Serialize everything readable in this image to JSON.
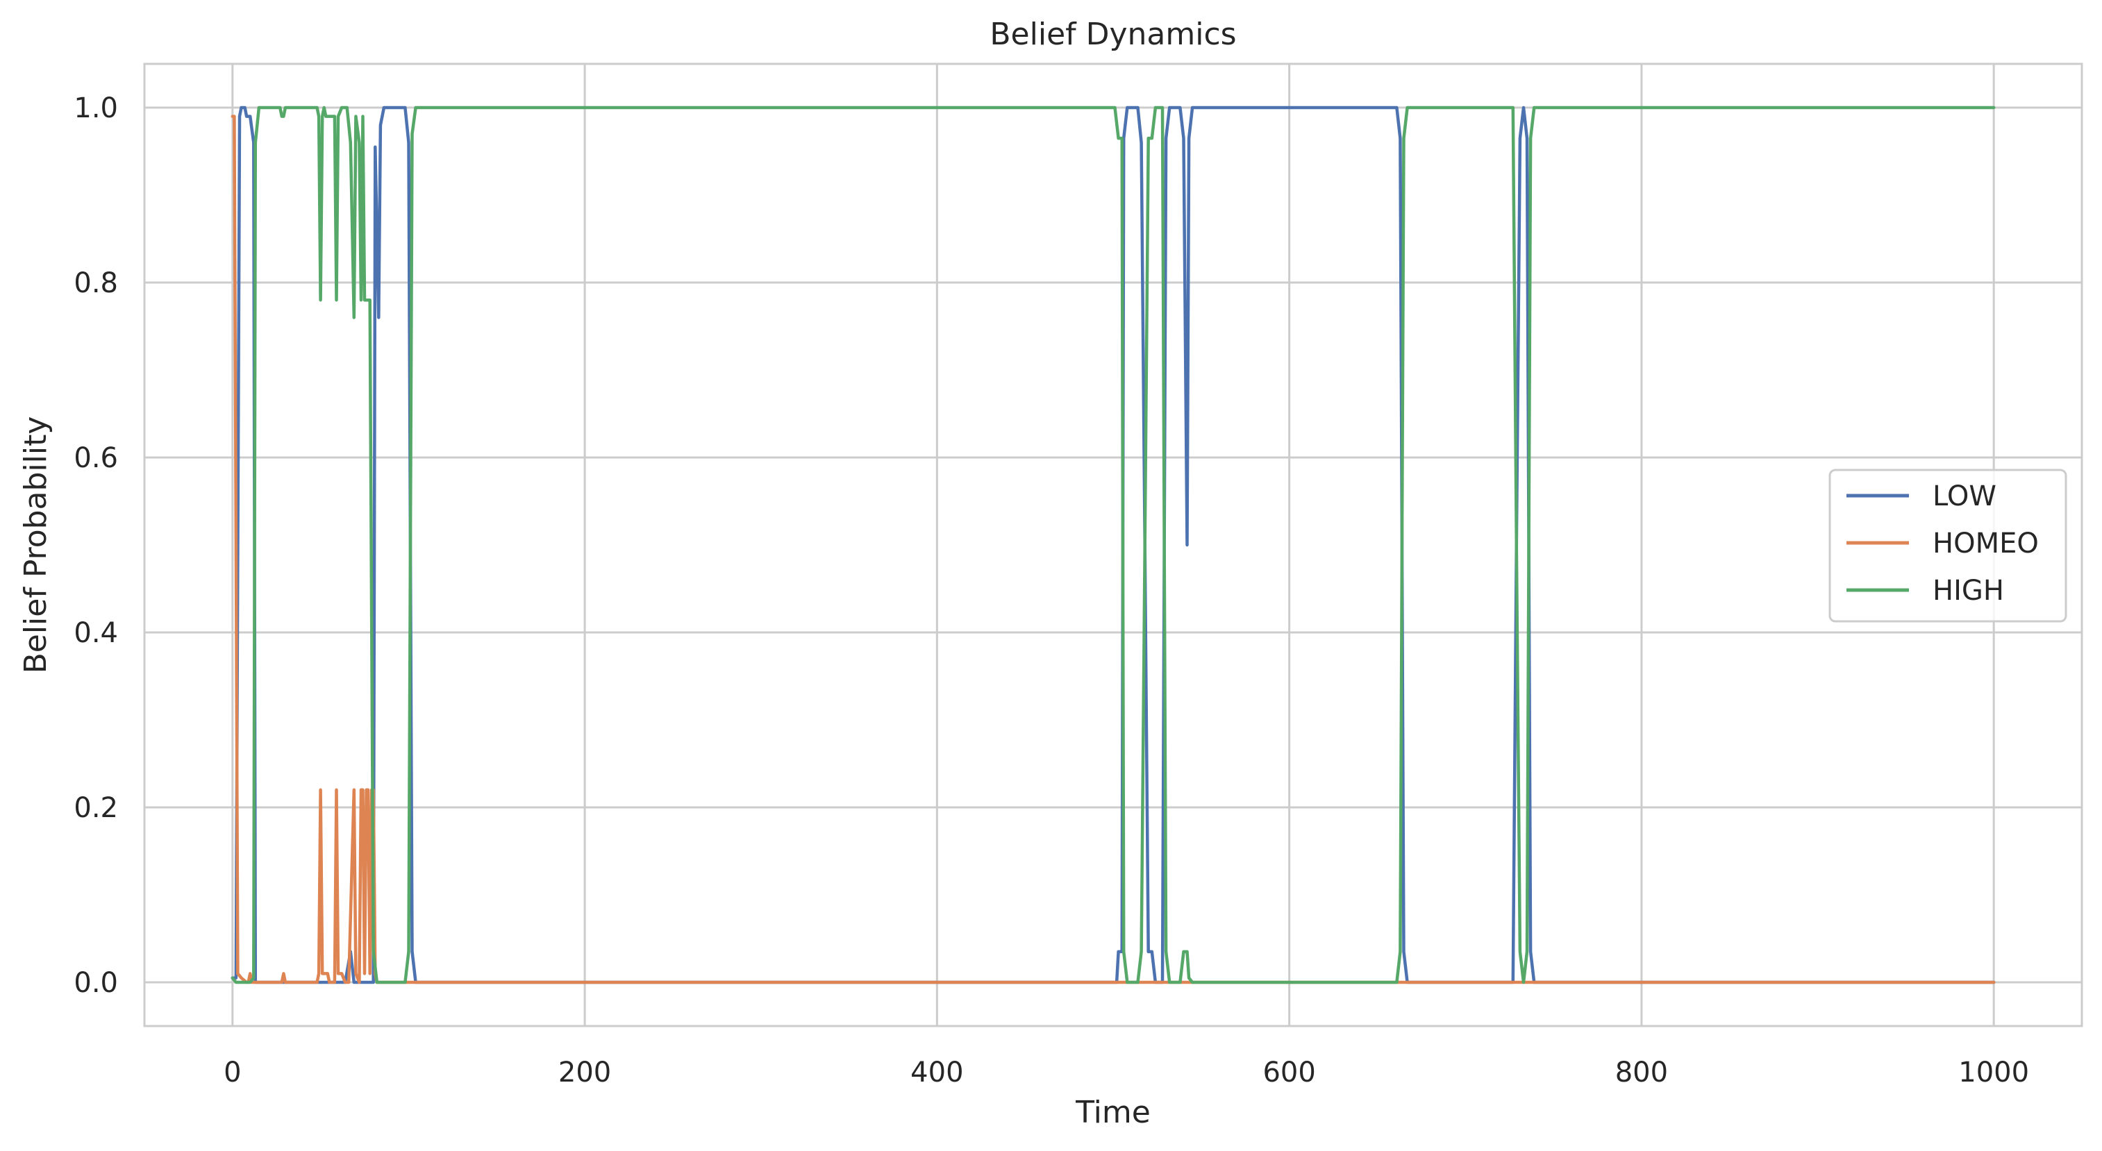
{
  "chart_data": {
    "type": "line",
    "title": "Belief Dynamics",
    "xlabel": "Time",
    "ylabel": "Belief Probability",
    "xlim": [
      -50,
      1050
    ],
    "ylim": [
      -0.05,
      1.05
    ],
    "xticks": [
      0,
      200,
      400,
      600,
      800,
      1000
    ],
    "xtick_labels": [
      "0",
      "200",
      "400",
      "600",
      "800",
      "1000"
    ],
    "yticks": [
      0.0,
      0.2,
      0.4,
      0.6,
      0.8,
      1.0
    ],
    "ytick_labels": [
      "0.0",
      "0.2",
      "0.4",
      "0.6",
      "0.8",
      "1.0"
    ],
    "grid": true,
    "legend_position": "center-right",
    "series": [
      {
        "name": "LOW",
        "color": "#4c72b0",
        "points": [
          [
            0,
            0.005
          ],
          [
            2,
            0.005
          ],
          [
            4,
            0.99
          ],
          [
            5,
            1.0
          ],
          [
            7,
            1.0
          ],
          [
            8,
            0.99
          ],
          [
            10,
            0.99
          ],
          [
            12,
            0.96
          ],
          [
            13,
            0.0
          ],
          [
            64,
            0.0
          ],
          [
            67,
            0.035
          ],
          [
            69,
            0.0
          ],
          [
            80,
            0.0
          ],
          [
            81,
            0.955
          ],
          [
            83,
            0.76
          ],
          [
            84,
            0.98
          ],
          [
            86,
            1.0
          ],
          [
            98,
            1.0
          ],
          [
            100,
            0.96
          ],
          [
            102,
            0.035
          ],
          [
            104,
            0.0
          ],
          [
            502,
            0.0
          ],
          [
            503,
            0.035
          ],
          [
            505,
            0.035
          ],
          [
            506,
            0.965
          ],
          [
            508,
            1.0
          ],
          [
            514,
            1.0
          ],
          [
            516,
            0.96
          ],
          [
            518,
            0.5
          ],
          [
            520,
            0.035
          ],
          [
            522,
            0.035
          ],
          [
            524,
            0.0
          ],
          [
            528,
            0.0
          ],
          [
            530,
            0.965
          ],
          [
            532,
            1.0
          ],
          [
            538,
            1.0
          ],
          [
            540,
            0.965
          ],
          [
            542,
            0.5
          ],
          [
            543,
            0.965
          ],
          [
            545,
            1.0
          ],
          [
            661,
            1.0
          ],
          [
            663,
            0.965
          ],
          [
            665,
            0.035
          ],
          [
            667,
            0.0
          ],
          [
            727,
            0.0
          ],
          [
            729,
            0.5
          ],
          [
            731,
            0.965
          ],
          [
            733,
            1.0
          ],
          [
            735,
            0.965
          ],
          [
            737,
            0.035
          ],
          [
            739,
            0.0
          ],
          [
            1000,
            0.0
          ]
        ]
      },
      {
        "name": "HOMEO",
        "color": "#dd8452",
        "points": [
          [
            0,
            0.99
          ],
          [
            1,
            0.99
          ],
          [
            3,
            0.01
          ],
          [
            5,
            0.005
          ],
          [
            8,
            0.0
          ],
          [
            9,
            0.0
          ],
          [
            10,
            0.01
          ],
          [
            11,
            0.0
          ],
          [
            28,
            0.0
          ],
          [
            29,
            0.01
          ],
          [
            30,
            0.0
          ],
          [
            48,
            0.0
          ],
          [
            49,
            0.01
          ],
          [
            50,
            0.22
          ],
          [
            51,
            0.01
          ],
          [
            52,
            0.01
          ],
          [
            54,
            0.01
          ],
          [
            55,
            0.0
          ],
          [
            58,
            0.0
          ],
          [
            59,
            0.22
          ],
          [
            60,
            0.01
          ],
          [
            62,
            0.01
          ],
          [
            64,
            0.0
          ],
          [
            66,
            0.0
          ],
          [
            69,
            0.22
          ],
          [
            70,
            0.01
          ],
          [
            72,
            0.0
          ],
          [
            73,
            0.22
          ],
          [
            74,
            0.22
          ],
          [
            75,
            0.01
          ],
          [
            76,
            0.22
          ],
          [
            77,
            0.22
          ],
          [
            78,
            0.01
          ],
          [
            79,
            0.22
          ],
          [
            80,
            0.22
          ],
          [
            81,
            0.01
          ],
          [
            82,
            0.0
          ],
          [
            1000,
            0.0
          ]
        ]
      },
      {
        "name": "HIGH",
        "color": "#55a868",
        "points": [
          [
            0,
            0.005
          ],
          [
            2,
            0.0
          ],
          [
            10,
            0.0
          ],
          [
            12,
            0.005
          ],
          [
            13,
            0.96
          ],
          [
            15,
            1.0
          ],
          [
            27,
            1.0
          ],
          [
            28,
            0.99
          ],
          [
            29,
            0.99
          ],
          [
            30,
            1.0
          ],
          [
            48,
            1.0
          ],
          [
            49,
            0.99
          ],
          [
            50,
            0.78
          ],
          [
            51,
            0.99
          ],
          [
            52,
            1.0
          ],
          [
            53,
            0.99
          ],
          [
            58,
            0.99
          ],
          [
            59,
            0.78
          ],
          [
            60,
            0.99
          ],
          [
            62,
            1.0
          ],
          [
            65,
            1.0
          ],
          [
            67,
            0.96
          ],
          [
            69,
            0.76
          ],
          [
            70,
            0.99
          ],
          [
            72,
            0.96
          ],
          [
            73,
            0.78
          ],
          [
            74,
            0.99
          ],
          [
            75,
            0.78
          ],
          [
            78,
            0.78
          ],
          [
            80,
            0.035
          ],
          [
            82,
            0.0
          ],
          [
            98,
            0.0
          ],
          [
            100,
            0.035
          ],
          [
            102,
            0.97
          ],
          [
            104,
            1.0
          ],
          [
            501,
            1.0
          ],
          [
            503,
            0.965
          ],
          [
            505,
            0.965
          ],
          [
            506,
            0.035
          ],
          [
            508,
            0.0
          ],
          [
            514,
            0.0
          ],
          [
            516,
            0.035
          ],
          [
            518,
            0.5
          ],
          [
            520,
            0.965
          ],
          [
            522,
            0.965
          ],
          [
            524,
            1.0
          ],
          [
            528,
            1.0
          ],
          [
            530,
            0.035
          ],
          [
            532,
            0.0
          ],
          [
            538,
            0.0
          ],
          [
            540,
            0.035
          ],
          [
            542,
            0.035
          ],
          [
            543,
            0.005
          ],
          [
            545,
            0.0
          ],
          [
            661,
            0.0
          ],
          [
            663,
            0.035
          ],
          [
            665,
            0.965
          ],
          [
            667,
            1.0
          ],
          [
            727,
            1.0
          ],
          [
            729,
            0.5
          ],
          [
            731,
            0.035
          ],
          [
            733,
            0.0
          ],
          [
            735,
            0.035
          ],
          [
            737,
            0.965
          ],
          [
            739,
            1.0
          ],
          [
            1000,
            1.0
          ]
        ]
      }
    ]
  }
}
